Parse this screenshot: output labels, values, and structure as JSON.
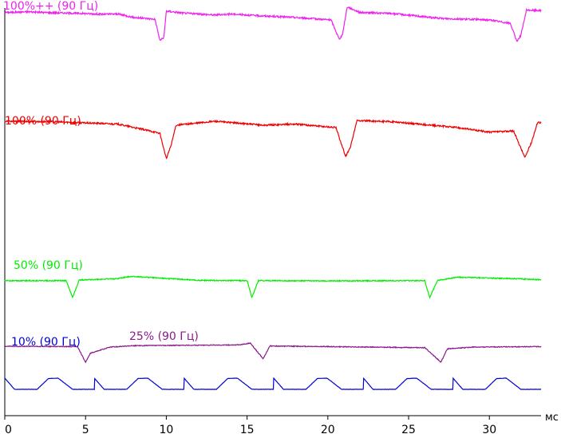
{
  "chart_data": {
    "type": "line",
    "x_unit": "мс",
    "xlim": [
      0,
      33.2
    ],
    "x_ticks": [
      0,
      5,
      10,
      15,
      20,
      25,
      30
    ],
    "x_tick_labels": [
      "0",
      "5",
      "10",
      "15",
      "20",
      "25",
      "30"
    ],
    "grid": false,
    "legend": "inline labels",
    "series": [
      {
        "name": "100%++ (90 Гц)",
        "color": "#ee22ee",
        "base_level": 0.72,
        "points": [
          [
            0,
            0.72
          ],
          [
            1.5,
            0.75
          ],
          [
            2.5,
            0.72
          ],
          [
            5,
            0.68
          ],
          [
            6,
            0.65
          ],
          [
            7,
            0.66
          ],
          [
            8,
            0.52
          ],
          [
            9.3,
            0.45
          ],
          [
            9.6,
            -0.4
          ],
          [
            9.85,
            -0.3
          ],
          [
            10,
            0.78
          ],
          [
            11,
            0.7
          ],
          [
            13,
            0.62
          ],
          [
            14,
            0.66
          ],
          [
            16,
            0.58
          ],
          [
            18,
            0.52
          ],
          [
            20.2,
            0.42
          ],
          [
            20.7,
            -0.35
          ],
          [
            20.9,
            -0.2
          ],
          [
            21.2,
            0.95
          ],
          [
            22,
            0.72
          ],
          [
            24,
            0.68
          ],
          [
            27,
            0.48
          ],
          [
            30,
            0.42
          ],
          [
            31.3,
            0.28
          ],
          [
            31.7,
            -0.45
          ],
          [
            31.95,
            -0.2
          ],
          [
            32.3,
            0.82
          ],
          [
            33.2,
            0.8
          ]
        ]
      },
      {
        "name": "100% (90 Гц)",
        "color": "#ee0000",
        "base_level": 0.62,
        "points": [
          [
            0,
            0.62
          ],
          [
            3,
            0.6
          ],
          [
            5,
            0.55
          ],
          [
            7,
            0.5
          ],
          [
            9,
            0.2
          ],
          [
            9.6,
            0.1
          ],
          [
            10,
            -1.0
          ],
          [
            10.3,
            -0.4
          ],
          [
            10.6,
            0.45
          ],
          [
            13,
            0.62
          ],
          [
            16,
            0.45
          ],
          [
            18,
            0.5
          ],
          [
            20.5,
            0.35
          ],
          [
            21.1,
            -0.9
          ],
          [
            21.4,
            -0.5
          ],
          [
            21.8,
            0.65
          ],
          [
            24,
            0.6
          ],
          [
            28,
            0.35
          ],
          [
            30,
            0.15
          ],
          [
            31.5,
            0.2
          ],
          [
            32.2,
            -0.95
          ],
          [
            32.6,
            -0.3
          ],
          [
            33,
            0.6
          ],
          [
            33.2,
            0.55
          ]
        ]
      },
      {
        "name": "50% (90 Гц)",
        "color": "#00ee00",
        "base_level": 0.18,
        "points": [
          [
            0,
            0.18
          ],
          [
            3.8,
            0.18
          ],
          [
            4.2,
            -1.0
          ],
          [
            4.6,
            0.22
          ],
          [
            7,
            0.32
          ],
          [
            7.8,
            0.48
          ],
          [
            12,
            0.2
          ],
          [
            15,
            0.18
          ],
          [
            15.3,
            -1.0
          ],
          [
            15.7,
            0.18
          ],
          [
            20,
            0.16
          ],
          [
            26,
            0.18
          ],
          [
            26.3,
            -1.0
          ],
          [
            26.8,
            0.2
          ],
          [
            28,
            0.42
          ],
          [
            32,
            0.3
          ],
          [
            33.2,
            0.25
          ]
        ]
      },
      {
        "name": "25% (90 Гц)",
        "color": "#8b1a8b",
        "base_level": 0.42,
        "points": [
          [
            0,
            0.42
          ],
          [
            4.5,
            0.4
          ],
          [
            5,
            -1.0
          ],
          [
            5.3,
            -0.2
          ],
          [
            6.5,
            0.35
          ],
          [
            8,
            0.48
          ],
          [
            14.5,
            0.55
          ],
          [
            15.2,
            0.7
          ],
          [
            16,
            -0.7
          ],
          [
            16.4,
            0.45
          ],
          [
            21,
            0.38
          ],
          [
            26,
            0.3
          ],
          [
            27,
            -1.0
          ],
          [
            27.4,
            0.2
          ],
          [
            29,
            0.35
          ],
          [
            33.2,
            0.4
          ]
        ]
      },
      {
        "name": "10% (90 Гц)",
        "color": "#0000dd",
        "period_ms": 5.55,
        "points": [
          [
            0,
            0.85
          ],
          [
            0.6,
            0
          ],
          [
            2,
            0
          ],
          [
            2.7,
            0.82
          ],
          [
            3.3,
            0.85
          ],
          [
            4.2,
            0
          ]
        ]
      }
    ]
  }
}
